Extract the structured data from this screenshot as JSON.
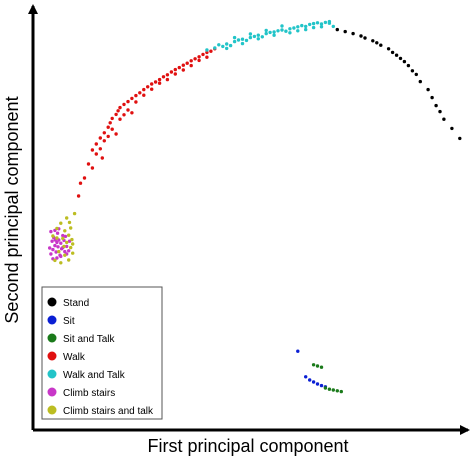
{
  "chart_data": {
    "type": "scatter",
    "title": "",
    "xlabel": "First principal component",
    "ylabel": "Second principal component",
    "xlim": [
      0,
      100
    ],
    "ylim": [
      0,
      100
    ],
    "axes_style": "arrows, no tick labels",
    "grid": false,
    "legend_position": "bottom-left",
    "series": [
      {
        "name": "Stand",
        "color": "#000000",
        "points": [
          [
            74,
            97.6
          ],
          [
            76,
            97.1
          ],
          [
            78,
            96.6
          ],
          [
            80,
            96.0
          ],
          [
            81,
            95.5
          ],
          [
            83,
            94.8
          ],
          [
            84,
            94.3
          ],
          [
            85,
            93.7
          ],
          [
            87,
            92.8
          ],
          [
            88,
            91.9
          ],
          [
            89,
            91.2
          ],
          [
            90,
            90.4
          ],
          [
            91,
            89.6
          ],
          [
            92,
            88.6
          ],
          [
            93,
            87.3
          ],
          [
            94,
            86.4
          ],
          [
            95,
            84.6
          ],
          [
            97,
            82.6
          ],
          [
            98,
            80.6
          ],
          [
            99,
            78.6
          ],
          [
            100,
            77.1
          ],
          [
            101,
            75.2
          ],
          [
            103,
            72.9
          ],
          [
            105,
            70.4
          ]
        ]
      },
      {
        "name": "Sit",
        "color": "#0a1fd4",
        "points": [
          [
            64,
            17.2
          ],
          [
            66,
            10.8
          ],
          [
            67,
            10.0
          ],
          [
            68,
            9.5
          ],
          [
            69,
            9.0
          ],
          [
            70,
            8.6
          ],
          [
            71,
            8.3
          ]
        ]
      },
      {
        "name": "Sit and Talk",
        "color": "#1a7a1a",
        "points": [
          [
            68,
            13.8
          ],
          [
            69,
            13.5
          ],
          [
            70,
            13.2
          ],
          [
            71,
            8.0
          ],
          [
            72,
            7.7
          ],
          [
            73,
            7.5
          ],
          [
            74,
            7.3
          ],
          [
            75,
            7.1
          ]
        ]
      },
      {
        "name": "Walk",
        "color": "#e01010",
        "points": [
          [
            12,
            67.5
          ],
          [
            13,
            69.0
          ],
          [
            14,
            70.5
          ],
          [
            15,
            71.8
          ],
          [
            16,
            73.2
          ],
          [
            16.5,
            74.3
          ],
          [
            17,
            75.4
          ],
          [
            18,
            76.4
          ],
          [
            18.5,
            77.3
          ],
          [
            19,
            78.1
          ],
          [
            20,
            78.9
          ],
          [
            21,
            79.6
          ],
          [
            22,
            80.4
          ],
          [
            23,
            81.1
          ],
          [
            24,
            81.8
          ],
          [
            25,
            82.6
          ],
          [
            26,
            83.3
          ],
          [
            27,
            84.0
          ],
          [
            28,
            84.5
          ],
          [
            29,
            85.1
          ],
          [
            30,
            85.8
          ],
          [
            31,
            86.3
          ],
          [
            32,
            87.0
          ],
          [
            33,
            87.6
          ],
          [
            34,
            88.1
          ],
          [
            35,
            88.7
          ],
          [
            36,
            89.2
          ],
          [
            37,
            89.8
          ],
          [
            38,
            90.3
          ],
          [
            39,
            90.8
          ],
          [
            40,
            91.4
          ],
          [
            41,
            91.9
          ],
          [
            42,
            92.2
          ],
          [
            43,
            92.8
          ],
          [
            10,
            60.5
          ],
          [
            11,
            64.0
          ],
          [
            13,
            66.5
          ],
          [
            15,
            69.8
          ],
          [
            17,
            72.7
          ],
          [
            19,
            75.2
          ],
          [
            21,
            77.5
          ],
          [
            23,
            79.5
          ],
          [
            25,
            81.2
          ],
          [
            27,
            82.7
          ],
          [
            29,
            84.2
          ],
          [
            31,
            85.1
          ],
          [
            33,
            86.5
          ],
          [
            35,
            87.5
          ],
          [
            37,
            88.6
          ],
          [
            39,
            89.9
          ],
          [
            41,
            90.7
          ],
          [
            12,
            63.0
          ],
          [
            14,
            67.8
          ],
          [
            16,
            70.9
          ],
          [
            20,
            76.3
          ],
          [
            9,
            59.2
          ],
          [
            8.5,
            56.0
          ],
          [
            14.5,
            65.5
          ],
          [
            18,
            71.5
          ],
          [
            22,
            76.8
          ]
        ]
      },
      {
        "name": "Walk and Talk",
        "color": "#22c4c8",
        "points": [
          [
            41,
            92.5
          ],
          [
            43,
            93.0
          ],
          [
            45,
            93.4
          ],
          [
            46,
            94.0
          ],
          [
            47,
            93.6
          ],
          [
            48,
            94.6
          ],
          [
            49,
            95.0
          ],
          [
            50,
            95.2
          ],
          [
            51,
            94.9
          ],
          [
            52,
            95.6
          ],
          [
            53,
            95.9
          ],
          [
            54,
            96.2
          ],
          [
            55,
            95.8
          ],
          [
            56,
            96.6
          ],
          [
            57,
            96.9
          ],
          [
            58,
            97.0
          ],
          [
            59,
            97.3
          ],
          [
            60,
            97.5
          ],
          [
            61,
            97.2
          ],
          [
            62,
            97.8
          ],
          [
            63,
            98.0
          ],
          [
            64,
            98.3
          ],
          [
            65,
            98.6
          ],
          [
            66,
            98.4
          ],
          [
            67,
            98.9
          ],
          [
            68,
            99.1
          ],
          [
            69,
            99.3
          ],
          [
            70,
            99.0
          ],
          [
            71,
            99.4
          ],
          [
            72,
            99.2
          ],
          [
            73,
            98.4
          ],
          [
            44,
            93.8
          ],
          [
            46,
            92.9
          ],
          [
            50,
            94.1
          ],
          [
            54,
            95.3
          ],
          [
            58,
            96.2
          ],
          [
            62,
            96.8
          ],
          [
            66,
            97.6
          ],
          [
            70,
            98.3
          ],
          [
            72,
            99.6
          ],
          [
            60,
            98.5
          ],
          [
            56,
            97.4
          ],
          [
            52,
            96.5
          ],
          [
            48,
            95.6
          ],
          [
            64,
            97.3
          ],
          [
            68,
            98.1
          ]
        ]
      },
      {
        "name": "Climb stairs",
        "color": "#c837c8",
        "points": [
          [
            1.5,
            41.5
          ],
          [
            2.0,
            42.6
          ],
          [
            2.5,
            43.6
          ],
          [
            3.0,
            44.4
          ],
          [
            3.5,
            45.0
          ],
          [
            4.0,
            44.2
          ],
          [
            4.5,
            43.1
          ],
          [
            5.0,
            42.1
          ],
          [
            5.5,
            41.5
          ],
          [
            2.2,
            45.6
          ],
          [
            3.2,
            46.7
          ],
          [
            1.8,
            44.7
          ],
          [
            2.8,
            42.0
          ],
          [
            3.8,
            41.2
          ],
          [
            4.8,
            44.9
          ],
          [
            1.5,
            47.1
          ],
          [
            2.5,
            47.4
          ],
          [
            3.5,
            47.8
          ],
          [
            4.5,
            46.1
          ],
          [
            5.5,
            43.4
          ],
          [
            6.0,
            42.3
          ],
          [
            2.0,
            40.3
          ],
          [
            3.0,
            40.5
          ],
          [
            4.0,
            40.9
          ],
          [
            1.2,
            43.0
          ],
          [
            5.2,
            45.9
          ],
          [
            6.2,
            44.7
          ],
          [
            3.3,
            43.3
          ],
          [
            4.2,
            42.8
          ],
          [
            2.6,
            45.0
          ]
        ]
      },
      {
        "name": "Climb stairs and talk",
        "color": "#bcbd22",
        "points": [
          [
            5.5,
            50.5
          ],
          [
            7.5,
            51.6
          ],
          [
            4.0,
            49.2
          ],
          [
            6.5,
            48.0
          ],
          [
            3.0,
            47.9
          ],
          [
            6.0,
            46.2
          ],
          [
            5.0,
            47.3
          ],
          [
            7.0,
            44.0
          ],
          [
            4.5,
            45.4
          ],
          [
            6.5,
            43.1
          ],
          [
            3.5,
            42.1
          ],
          [
            5.0,
            41.2
          ],
          [
            6.0,
            40.0
          ],
          [
            2.5,
            39.9
          ],
          [
            4.0,
            39.3
          ],
          [
            7.0,
            41.7
          ],
          [
            5.5,
            44.4
          ],
          [
            3.0,
            45.5
          ],
          [
            6.8,
            45.1
          ],
          [
            4.8,
            43.4
          ],
          [
            2.0,
            46.0
          ],
          [
            6.2,
            49.4
          ]
        ]
      }
    ]
  }
}
